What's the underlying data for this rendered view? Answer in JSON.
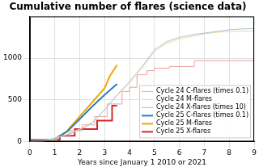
{
  "chart_data": {
    "type": "line",
    "title": "Cumulative number of flares (science data)",
    "x_label": "Years since January 1 2010 or 2021",
    "xlim": [
      0,
      9
    ],
    "xticks": [
      0,
      1,
      2,
      3,
      4,
      5,
      6,
      7,
      8,
      9
    ],
    "ylim": [
      0,
      1500
    ],
    "yticks": [
      0,
      500,
      1000
    ],
    "grid": true,
    "legend": "lower right",
    "series": [
      {
        "name": "Cycle 24 C-flares (times 0.1)",
        "color": "#9dc6e0",
        "x": [
          0,
          0.5,
          1,
          1.5,
          2,
          2.5,
          3,
          3.5,
          4,
          4.5,
          5,
          5.5,
          6,
          6.5,
          7,
          7.5,
          8,
          8.5,
          9
        ],
        "values": [
          0,
          10,
          40,
          80,
          140,
          220,
          380,
          560,
          720,
          900,
          1100,
          1200,
          1250,
          1280,
          1300,
          1320,
          1340,
          1350,
          1355
        ]
      },
      {
        "name": "Cycle 24 M-flares",
        "color": "#f9d29a",
        "x": [
          0,
          0.5,
          1,
          1.5,
          2,
          2.5,
          3,
          3.5,
          4,
          4.5,
          5,
          5.5,
          6,
          6.5,
          7,
          7.5,
          8,
          8.5,
          9
        ],
        "values": [
          0,
          5,
          30,
          90,
          150,
          230,
          380,
          550,
          700,
          880,
          1080,
          1180,
          1230,
          1260,
          1290,
          1310,
          1320,
          1325,
          1325
        ]
      },
      {
        "name": "Cycle 24 X-flares (times 10)",
        "color": "#e8a2a2",
        "line_style": "steps",
        "x": [
          0,
          1.1,
          1.6,
          2.1,
          2.6,
          3.1,
          3.7,
          4.0,
          4.3,
          4.7,
          5.0,
          5.6,
          6.6,
          7.7,
          9
        ],
        "values": [
          0,
          20,
          60,
          130,
          200,
          300,
          450,
          600,
          650,
          800,
          850,
          880,
          900,
          970,
          970
        ]
      },
      {
        "name": "Cycle 25 C-flares (times 0.1)",
        "color": "#2c7fb8",
        "x": [
          0,
          0.5,
          1,
          1.5,
          2,
          2.5,
          3,
          3.5
        ],
        "values": [
          0,
          5,
          30,
          120,
          270,
          420,
          560,
          690
        ]
      },
      {
        "name": "Cycle 25 M-flares",
        "color": "#f0a500",
        "x": [
          0,
          1,
          1.5,
          2,
          2.5,
          3,
          3.2,
          3.5
        ],
        "values": [
          0,
          20,
          130,
          300,
          470,
          640,
          780,
          920
        ]
      },
      {
        "name": "Cycle 25 X-flares",
        "color": "#d62728",
        "line_style": "steps",
        "x": [
          0,
          1.2,
          1.8,
          2.7,
          3.3,
          3.45,
          3.5
        ],
        "values": [
          0,
          20,
          70,
          150,
          250,
          430,
          430
        ]
      }
    ]
  }
}
